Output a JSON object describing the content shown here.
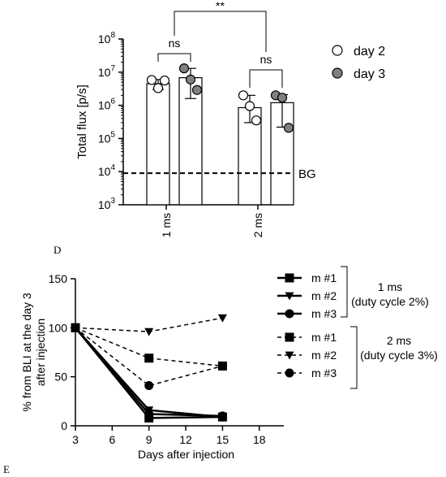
{
  "panel_labels": {
    "top": "D",
    "bottom": "E"
  },
  "chart_data": [
    {
      "type": "bar",
      "ylabel": "Total flux [p/s]",
      "yscale": "log",
      "ylim": [
        1000,
        100000000
      ],
      "y_ticks": [
        {
          "base": "10",
          "exp": "3"
        },
        {
          "base": "10",
          "exp": "4"
        },
        {
          "base": "10",
          "exp": "5"
        },
        {
          "base": "10",
          "exp": "6"
        },
        {
          "base": "10",
          "exp": "7"
        },
        {
          "base": "10",
          "exp": "8"
        }
      ],
      "categories": [
        "1 ms",
        "2 ms"
      ],
      "series": [
        {
          "name": "day 2",
          "color": "#ffffff",
          "bars": [
            4500000,
            850000
          ],
          "err_low": [
            3000000,
            300000
          ],
          "err_high": [
            6000000,
            2000000
          ],
          "points": [
            [
              5800000,
              3300000,
              5600000
            ],
            [
              2000000,
              950000,
              350000
            ]
          ]
        },
        {
          "name": "day 3",
          "color": "#808080",
          "bars": [
            6800000,
            1200000
          ],
          "err_low": [
            1600000,
            220000
          ],
          "err_high": [
            13000000,
            2100000
          ],
          "points": [
            [
              13000000,
              6000000,
              2900000
            ],
            [
              2000000,
              1700000,
              210000
            ]
          ]
        }
      ],
      "baseline": {
        "label": "BG",
        "value": 9000
      },
      "annotations": [
        {
          "label": "ns",
          "group": "1 ms"
        },
        {
          "label": "ns",
          "group": "2 ms"
        },
        {
          "label": "**",
          "between": [
            "1 ms",
            "2 ms"
          ]
        }
      ],
      "legend": {
        "position": "right"
      }
    },
    {
      "type": "line",
      "ylabel_lines": [
        "% from BLI at the day 3",
        "after injection"
      ],
      "xlabel": "Days after injection",
      "x_ticks": [
        "3",
        "6",
        "9",
        "12",
        "15",
        "18"
      ],
      "y_ticks": [
        "0",
        "50",
        "100",
        "150"
      ],
      "xlim": [
        3,
        20
      ],
      "ylim": [
        0,
        150
      ],
      "x": [
        3,
        9,
        15
      ],
      "series": [
        {
          "name": "m #1",
          "marker": "square",
          "dash": false,
          "values": [
            100,
            8,
            9
          ]
        },
        {
          "name": "m #2",
          "marker": "triangle-down",
          "dash": false,
          "values": [
            100,
            16,
            9
          ]
        },
        {
          "name": "m #3",
          "marker": "circle",
          "dash": false,
          "values": [
            100,
            12,
            10
          ]
        },
        {
          "name": "m #1",
          "marker": "square",
          "dash": true,
          "values": [
            100,
            69,
            61
          ]
        },
        {
          "name": "m #2",
          "marker": "triangle-down",
          "dash": true,
          "values": [
            100,
            96,
            110
          ]
        },
        {
          "name": "m #3",
          "marker": "circle",
          "dash": true,
          "values": [
            100,
            41,
            61
          ]
        }
      ],
      "legend_groups": [
        {
          "label": "1 ms",
          "sublabel": "(duty cycle 2%)"
        },
        {
          "label": "2 ms",
          "sublabel": "(duty cycle 3%)"
        }
      ],
      "legend": {
        "position": "right"
      }
    }
  ]
}
